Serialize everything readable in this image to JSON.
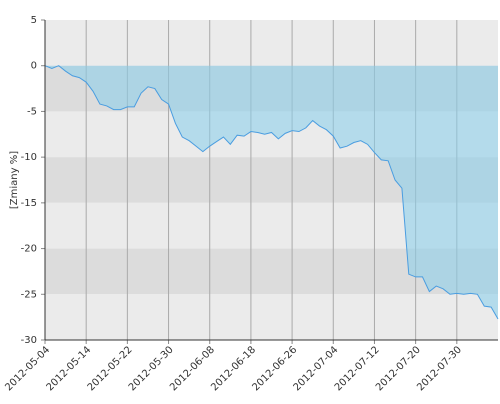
{
  "chart_data": {
    "type": "area",
    "y_label": "[Zmiany %]",
    "categories": [
      "2012-05-04",
      null,
      null,
      null,
      null,
      null,
      "2012-05-14",
      null,
      null,
      null,
      null,
      null,
      "2012-05-22",
      null,
      null,
      null,
      null,
      null,
      "2012-05-30",
      null,
      null,
      null,
      null,
      null,
      "2012-06-08",
      null,
      null,
      null,
      null,
      null,
      "2012-06-18",
      null,
      null,
      null,
      null,
      null,
      "2012-06-26",
      null,
      null,
      null,
      null,
      null,
      "2012-07-04",
      null,
      null,
      null,
      null,
      null,
      "2012-07-12",
      null,
      null,
      null,
      null,
      null,
      "2012-07-20",
      null,
      null,
      null,
      null,
      null,
      "2012-07-30",
      null,
      null,
      null,
      null,
      null,
      null
    ],
    "series": [
      {
        "color": "#4a9de0",
        "fill": "rgba(135,206,235,0.55)",
        "values": [
          0,
          -0.3,
          0,
          -0.6,
          -1.1,
          -1.3,
          -1.8,
          -2.8,
          -4.2,
          -4.4,
          -4.8,
          -4.8,
          -4.5,
          -4.5,
          -3.0,
          -2.3,
          -2.5,
          -3.7,
          -4.2,
          -6.3,
          -7.8,
          -8.2,
          -8.8,
          -9.4,
          -8.8,
          -8.3,
          -7.8,
          -8.6,
          -7.6,
          -7.7,
          -7.2,
          -7.3,
          -7.5,
          -7.3,
          -8.0,
          -7.4,
          -7.1,
          -7.2,
          -6.8,
          -6.0,
          -6.6,
          -7.0,
          -7.7,
          -9.0,
          -8.8,
          -8.4,
          -8.2,
          -8.6,
          -9.5,
          -10.3,
          -10.4,
          -12.5,
          -13.4,
          -22.8,
          -23.1,
          -23.1,
          -24.7,
          -24.1,
          -24.4,
          -25.0,
          -24.9,
          -25.0,
          -24.9,
          -25.0,
          -26.3,
          -26.4,
          -27.7
        ]
      }
    ],
    "ylim": [
      -30,
      5
    ],
    "yticks": [
      -30,
      -25,
      -20,
      -15,
      -10,
      -5,
      0,
      5
    ],
    "band_colors": [
      "#ebebeb",
      "#dcdcdc"
    ],
    "grid": true
  }
}
